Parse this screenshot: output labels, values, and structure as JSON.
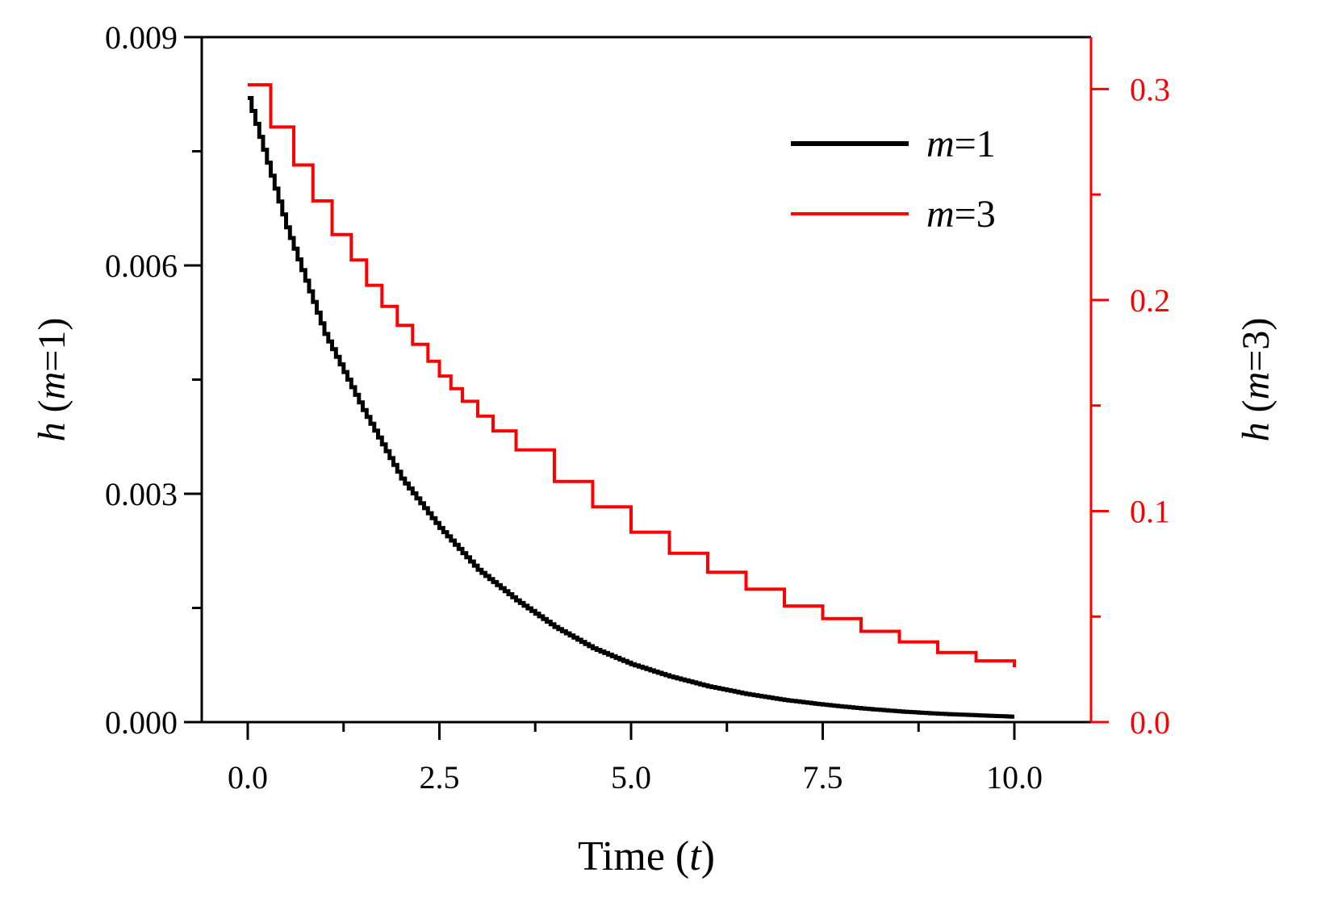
{
  "chart_data": {
    "type": "line",
    "title": "",
    "xlabel": {
      "main": "Time (",
      "var": "t",
      "close": ")"
    },
    "ylabel_left": {
      "var": "h",
      "open": " (",
      "m": "m",
      "rest": "=1)"
    },
    "ylabel_right": {
      "var": "h",
      "open": " (",
      "m": "m",
      "rest": "=3)"
    },
    "xlim": [
      -0.6,
      11.0
    ],
    "ylim_left": [
      0.0,
      0.009
    ],
    "ylim_right": [
      0.0,
      0.3246
    ],
    "x_ticks": [
      "0.0",
      "2.5",
      "5.0",
      "7.5",
      "10.0"
    ],
    "x_tick_values": [
      0.0,
      2.5,
      5.0,
      7.5,
      10.0
    ],
    "y_left_ticks": [
      "0.000",
      "0.003",
      "0.006",
      "0.009"
    ],
    "y_left_tick_values": [
      0.0,
      0.003,
      0.006,
      0.009
    ],
    "y_right_ticks": [
      "0.0",
      "0.1",
      "0.2",
      "0.3"
    ],
    "y_right_tick_values": [
      0.0,
      0.1,
      0.2,
      0.3
    ],
    "colors": {
      "m1": "#000000",
      "m3": "#ff0000",
      "axis_left": "#000000",
      "axis_right": "#ff0000"
    },
    "legend_position": "top-right",
    "series": [
      {
        "name": "m=1",
        "legend_var": "m",
        "legend_rest": "=1",
        "axis": "left",
        "color": "#000000",
        "step": "fine",
        "x": [
          0.0,
          0.5,
          1.0,
          1.5,
          2.0,
          2.5,
          3.0,
          3.5,
          4.0,
          4.5,
          5.0,
          5.5,
          6.0,
          6.5,
          7.0,
          7.5,
          8.0,
          8.5,
          9.0,
          9.5,
          10.0
        ],
        "y": [
          0.0082,
          0.0065,
          0.0051,
          0.0041,
          0.0032,
          0.00255,
          0.002,
          0.0016,
          0.00125,
          0.00097,
          0.00076,
          0.0006,
          0.00047,
          0.00037,
          0.00029,
          0.00023,
          0.00018,
          0.00014,
          0.00011,
          9e-05,
          7e-05
        ]
      },
      {
        "name": "m=3",
        "legend_var": "m",
        "legend_rest": "=3",
        "axis": "right",
        "color": "#ff0000",
        "step": "coarse",
        "x": [
          0.0,
          0.3,
          0.6,
          0.85,
          1.1,
          1.35,
          1.55,
          1.75,
          1.95,
          2.15,
          2.35,
          2.5,
          2.65,
          2.8,
          3.0,
          3.2,
          3.5,
          4.0,
          4.5,
          5.0,
          5.5,
          6.0,
          6.5,
          7.0,
          7.5,
          8.0,
          8.5,
          9.0,
          9.5,
          10.0
        ],
        "y": [
          0.302,
          0.282,
          0.264,
          0.247,
          0.231,
          0.219,
          0.207,
          0.197,
          0.188,
          0.179,
          0.171,
          0.164,
          0.158,
          0.152,
          0.145,
          0.138,
          0.129,
          0.114,
          0.102,
          0.09,
          0.08,
          0.071,
          0.063,
          0.055,
          0.049,
          0.043,
          0.038,
          0.033,
          0.029,
          0.026
        ]
      }
    ]
  }
}
